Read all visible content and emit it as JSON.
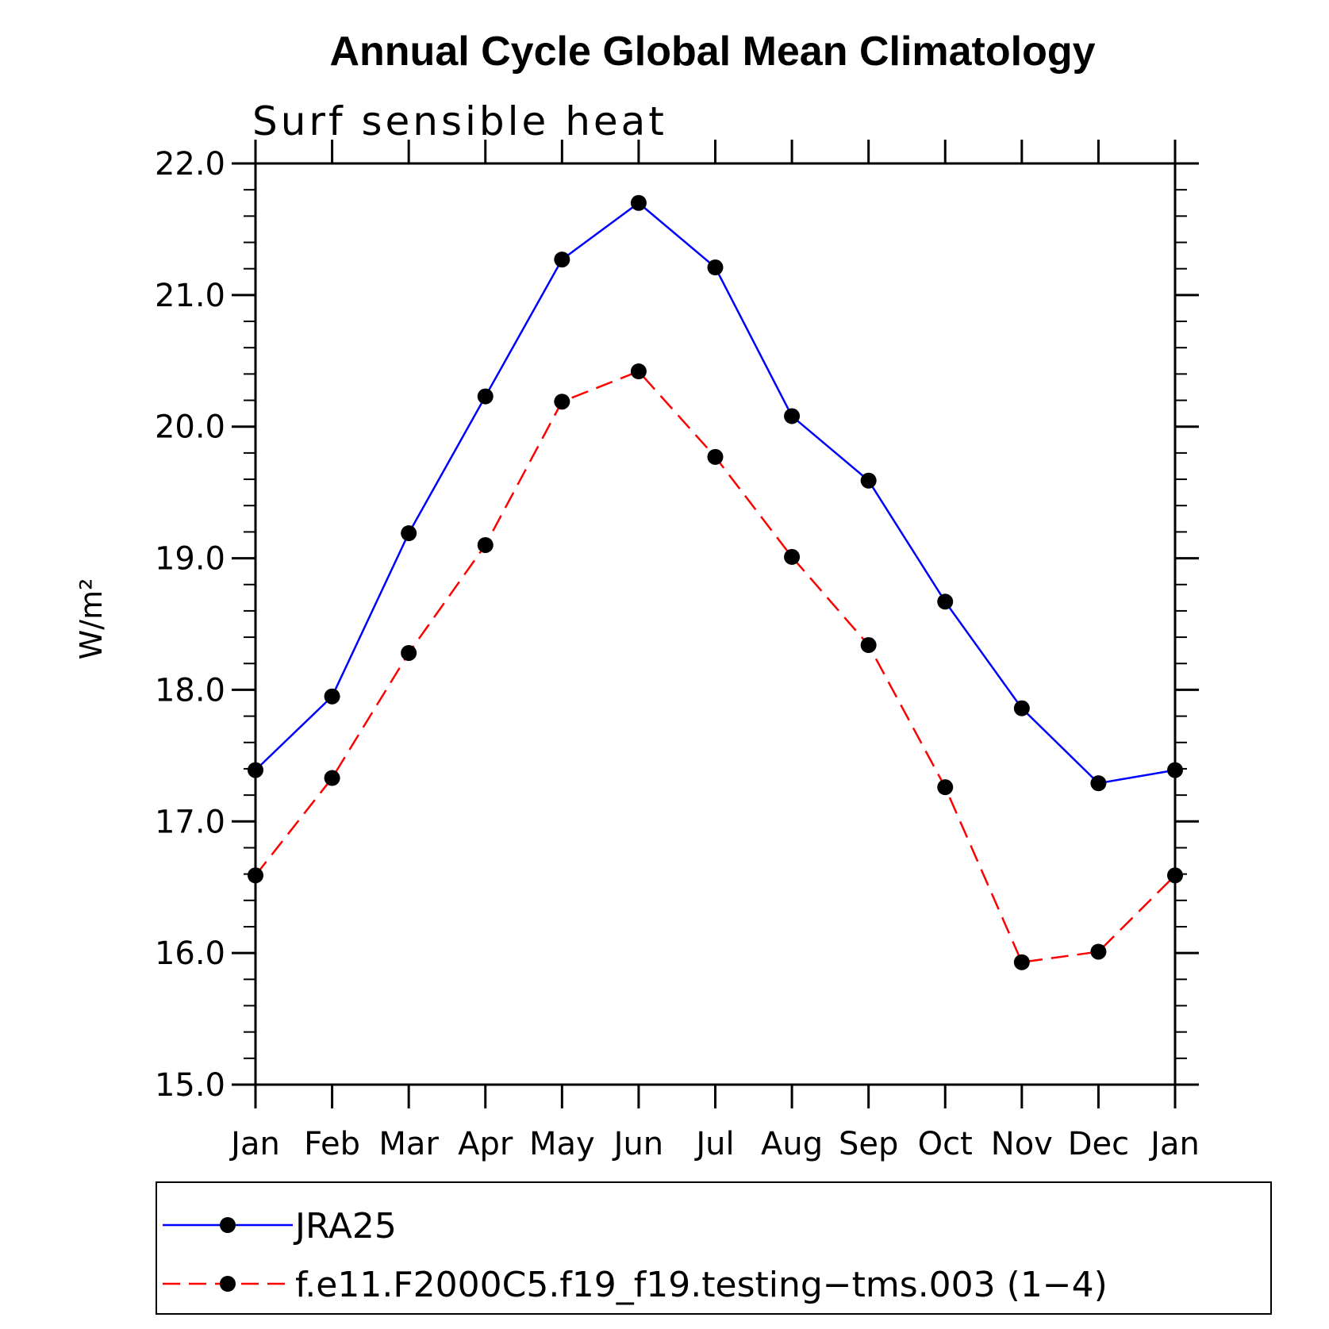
{
  "chart_data": {
    "type": "line",
    "title": "Annual Cycle Global Mean Climatology",
    "subtitle": "Surf sensible heat",
    "xlabel": "",
    "ylabel": "W/m²",
    "categories": [
      "Jan",
      "Feb",
      "Mar",
      "Apr",
      "May",
      "Jun",
      "Jul",
      "Aug",
      "Sep",
      "Oct",
      "Nov",
      "Dec",
      "Jan"
    ],
    "yticks": [
      "15.0",
      "16.0",
      "17.0",
      "18.0",
      "19.0",
      "20.0",
      "21.0",
      "22.0"
    ],
    "ylim": [
      15.0,
      22.0
    ],
    "grid": false,
    "legend_position": "bottom",
    "series": [
      {
        "name": "JRA25",
        "color": "#0000ff",
        "dash": "solid",
        "values": [
          17.39,
          17.95,
          19.19,
          20.23,
          21.27,
          21.7,
          21.21,
          20.08,
          19.59,
          18.67,
          17.86,
          17.29,
          17.39
        ]
      },
      {
        "name": "f.e11.F2000C5.f19_f19.testing−tms.003 (1−4)",
        "color": "#ff0000",
        "dash": "dashed",
        "values": [
          16.59,
          17.33,
          18.28,
          19.1,
          20.19,
          20.42,
          19.77,
          19.01,
          18.34,
          17.26,
          15.93,
          16.01,
          16.59
        ]
      }
    ]
  }
}
